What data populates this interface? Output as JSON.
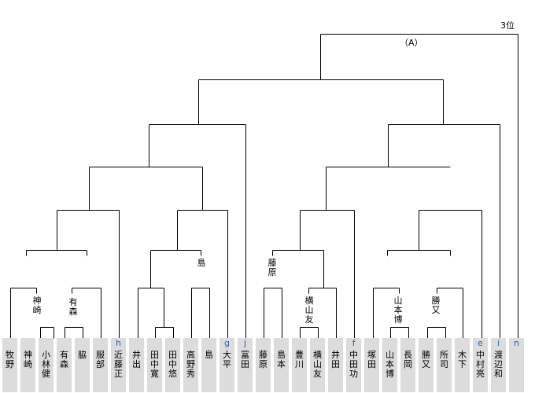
{
  "rank_label": "3位",
  "section_label": "（A）",
  "players": [
    {
      "seed": "",
      "name": "牧\n野"
    },
    {
      "seed": "",
      "name": "神\n崎"
    },
    {
      "seed": "",
      "name": "小\n林\n健"
    },
    {
      "seed": "",
      "name": "有\n森"
    },
    {
      "seed": "",
      "name": "脇"
    },
    {
      "seed": "",
      "name": "服\n部"
    },
    {
      "seed": "h",
      "name": "近\n藤\n正"
    },
    {
      "seed": "",
      "name": "井\n出"
    },
    {
      "seed": "",
      "name": "田\n中\n寛"
    },
    {
      "seed": "",
      "name": "田\n中\n悠"
    },
    {
      "seed": "",
      "name": "高\n野\n秀"
    },
    {
      "seed": "",
      "name": "島"
    },
    {
      "seed": "g",
      "name": "大\n平"
    },
    {
      "seed": "j",
      "name": "冨\n田"
    },
    {
      "seed": "",
      "name": "藤\n原"
    },
    {
      "seed": "",
      "name": "島\n本"
    },
    {
      "seed": "",
      "name": "豊\n川"
    },
    {
      "seed": "",
      "name": "横\n山\n友"
    },
    {
      "seed": "",
      "name": "井\n田"
    },
    {
      "seed": "f",
      "name": "中\n田\n功"
    },
    {
      "seed": "",
      "name": "塚\n田"
    },
    {
      "seed": "",
      "name": "山\n本\n博"
    },
    {
      "seed": "",
      "name": "長\n岡"
    },
    {
      "seed": "",
      "name": "勝\n又"
    },
    {
      "seed": "",
      "name": "所\n司"
    },
    {
      "seed": "",
      "name": "木\n下"
    },
    {
      "seed": "e",
      "name": "中\n村\n亮"
    },
    {
      "seed": "i",
      "name": "渡\n辺\n和"
    },
    {
      "seed": "n",
      "name": ""
    }
  ],
  "winners": {
    "kanzaki": "神\n崎",
    "arimori": "有\n森",
    "shima": "島",
    "fujiwara": "藤\n原",
    "yokoyama": "横\n山\n友",
    "yamamoto": "山\n本\n博",
    "katsumata": "勝\n又"
  }
}
